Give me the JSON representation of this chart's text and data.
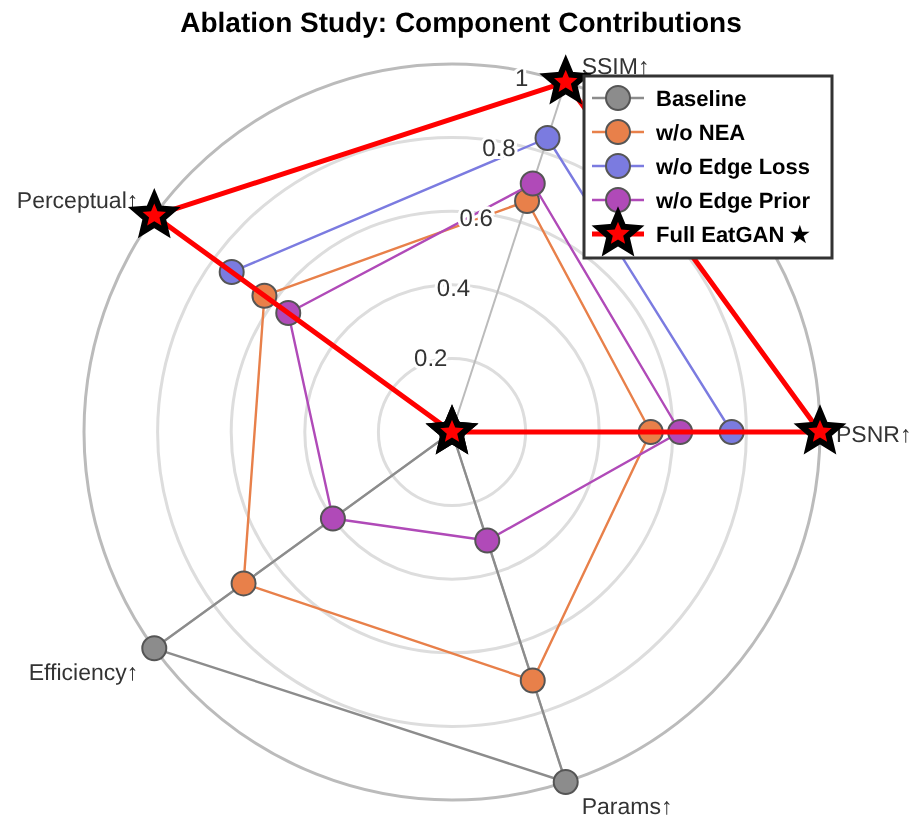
{
  "chart_data": {
    "type": "radar",
    "title": "Ablation Study: Component Contributions",
    "categories": [
      "SSIM↑",
      "PSNR↑",
      "Params↑",
      "Efficiency↑",
      "Perceptual↑"
    ],
    "ylim": [
      0,
      1
    ],
    "yticks": [
      0.2,
      0.4,
      0.6,
      0.8,
      1
    ],
    "grid": true,
    "legend": "top right",
    "marker": "circle",
    "series": [
      {
        "name": "Baseline",
        "color": "#8c8c8c",
        "values": [
          0,
          0,
          1,
          1,
          0
        ]
      },
      {
        "name": "w/o NEA",
        "color": "#e8804a",
        "values": [
          0.66,
          0.54,
          0.71,
          0.7,
          0.63
        ]
      },
      {
        "name": "w/o Edge Loss",
        "color": "#7b7be0",
        "values": [
          0.84,
          0.76,
          0,
          0,
          0.74
        ]
      },
      {
        "name": "w/o Edge Prior",
        "color": "#b04ab8",
        "values": [
          0.71,
          0.62,
          0.31,
          0.4,
          0.55
        ]
      },
      {
        "name": "Full EatGAN ★",
        "color": "#ff0000",
        "values": [
          1,
          1,
          0,
          0,
          1
        ],
        "marker": "star"
      }
    ]
  }
}
